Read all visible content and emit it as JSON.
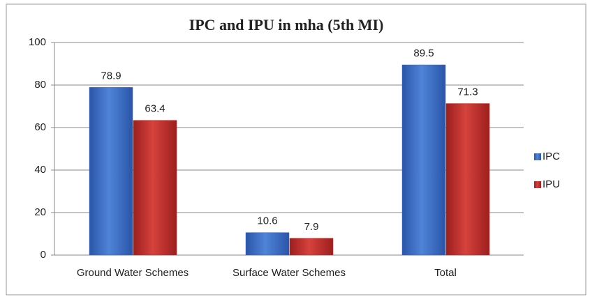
{
  "chart_data": {
    "type": "bar",
    "title": "IPC and IPU in mha (5th MI)",
    "categories": [
      "Ground Water Schemes",
      "Surface Water Schemes",
      "Total"
    ],
    "series": [
      {
        "name": "IPC",
        "color": "#3a6cc6",
        "values": [
          78.9,
          10.6,
          89.5
        ]
      },
      {
        "name": "IPU",
        "color": "#c3302c",
        "values": [
          63.4,
          7.9,
          71.3
        ]
      }
    ],
    "ylim": [
      0,
      100
    ],
    "yticks": [
      0,
      20,
      40,
      60,
      80,
      100
    ],
    "grid": true,
    "legend": "right"
  }
}
